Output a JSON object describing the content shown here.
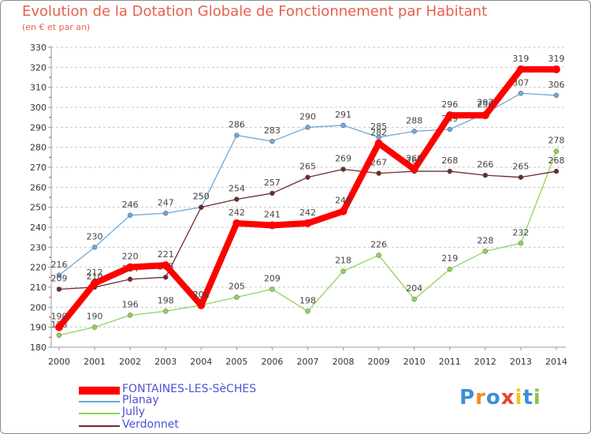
{
  "chart_data": {
    "type": "line",
    "title": "Evolution de la Dotation Globale de Fonctionnement par Habitant",
    "subtitle": "(en € et par an)",
    "categories": [
      "2000",
      "2001",
      "2002",
      "2003",
      "2004",
      "2005",
      "2006",
      "2007",
      "2008",
      "2009",
      "2010",
      "2011",
      "2012",
      "2013",
      "2014"
    ],
    "ylim": [
      180,
      330
    ],
    "yticks": [
      180,
      190,
      200,
      210,
      220,
      230,
      240,
      250,
      260,
      270,
      280,
      290,
      300,
      310,
      320,
      330
    ],
    "grid": "dashed-horizontal",
    "legend_position": "bottom-left",
    "series": [
      {
        "name": "FONTAINES-LES-SèCHES",
        "color": "#ff0000",
        "values": [
          190,
          212,
          220,
          221,
          201,
          242,
          241,
          242,
          248,
          282,
          269,
          296,
          296,
          319,
          319
        ]
      },
      {
        "name": "Planay",
        "color": "#6fa8dc",
        "values": [
          216,
          230,
          246,
          247,
          250,
          286,
          283,
          290,
          291,
          285,
          288,
          289,
          297,
          307,
          306
        ]
      },
      {
        "name": "Jully",
        "color": "#8fd45a",
        "values": [
          186,
          190,
          196,
          198,
          201,
          205,
          209,
          198,
          218,
          226,
          204,
          219,
          228,
          232,
          278
        ]
      },
      {
        "name": "Verdonnet",
        "color": "#6e2a2a",
        "values": [
          209,
          210,
          214,
          215,
          250,
          254,
          257,
          265,
          269,
          267,
          268,
          268,
          266,
          265,
          268
        ]
      }
    ]
  },
  "logo": {
    "letters": [
      "P",
      "r",
      "o",
      "x",
      "i",
      "t",
      "i"
    ],
    "colors": [
      "#3a8fd9",
      "#f08c1c",
      "#3a8fd9",
      "#e8452c",
      "#f5c21b",
      "#3a8fd9",
      "#8bc34a"
    ]
  }
}
